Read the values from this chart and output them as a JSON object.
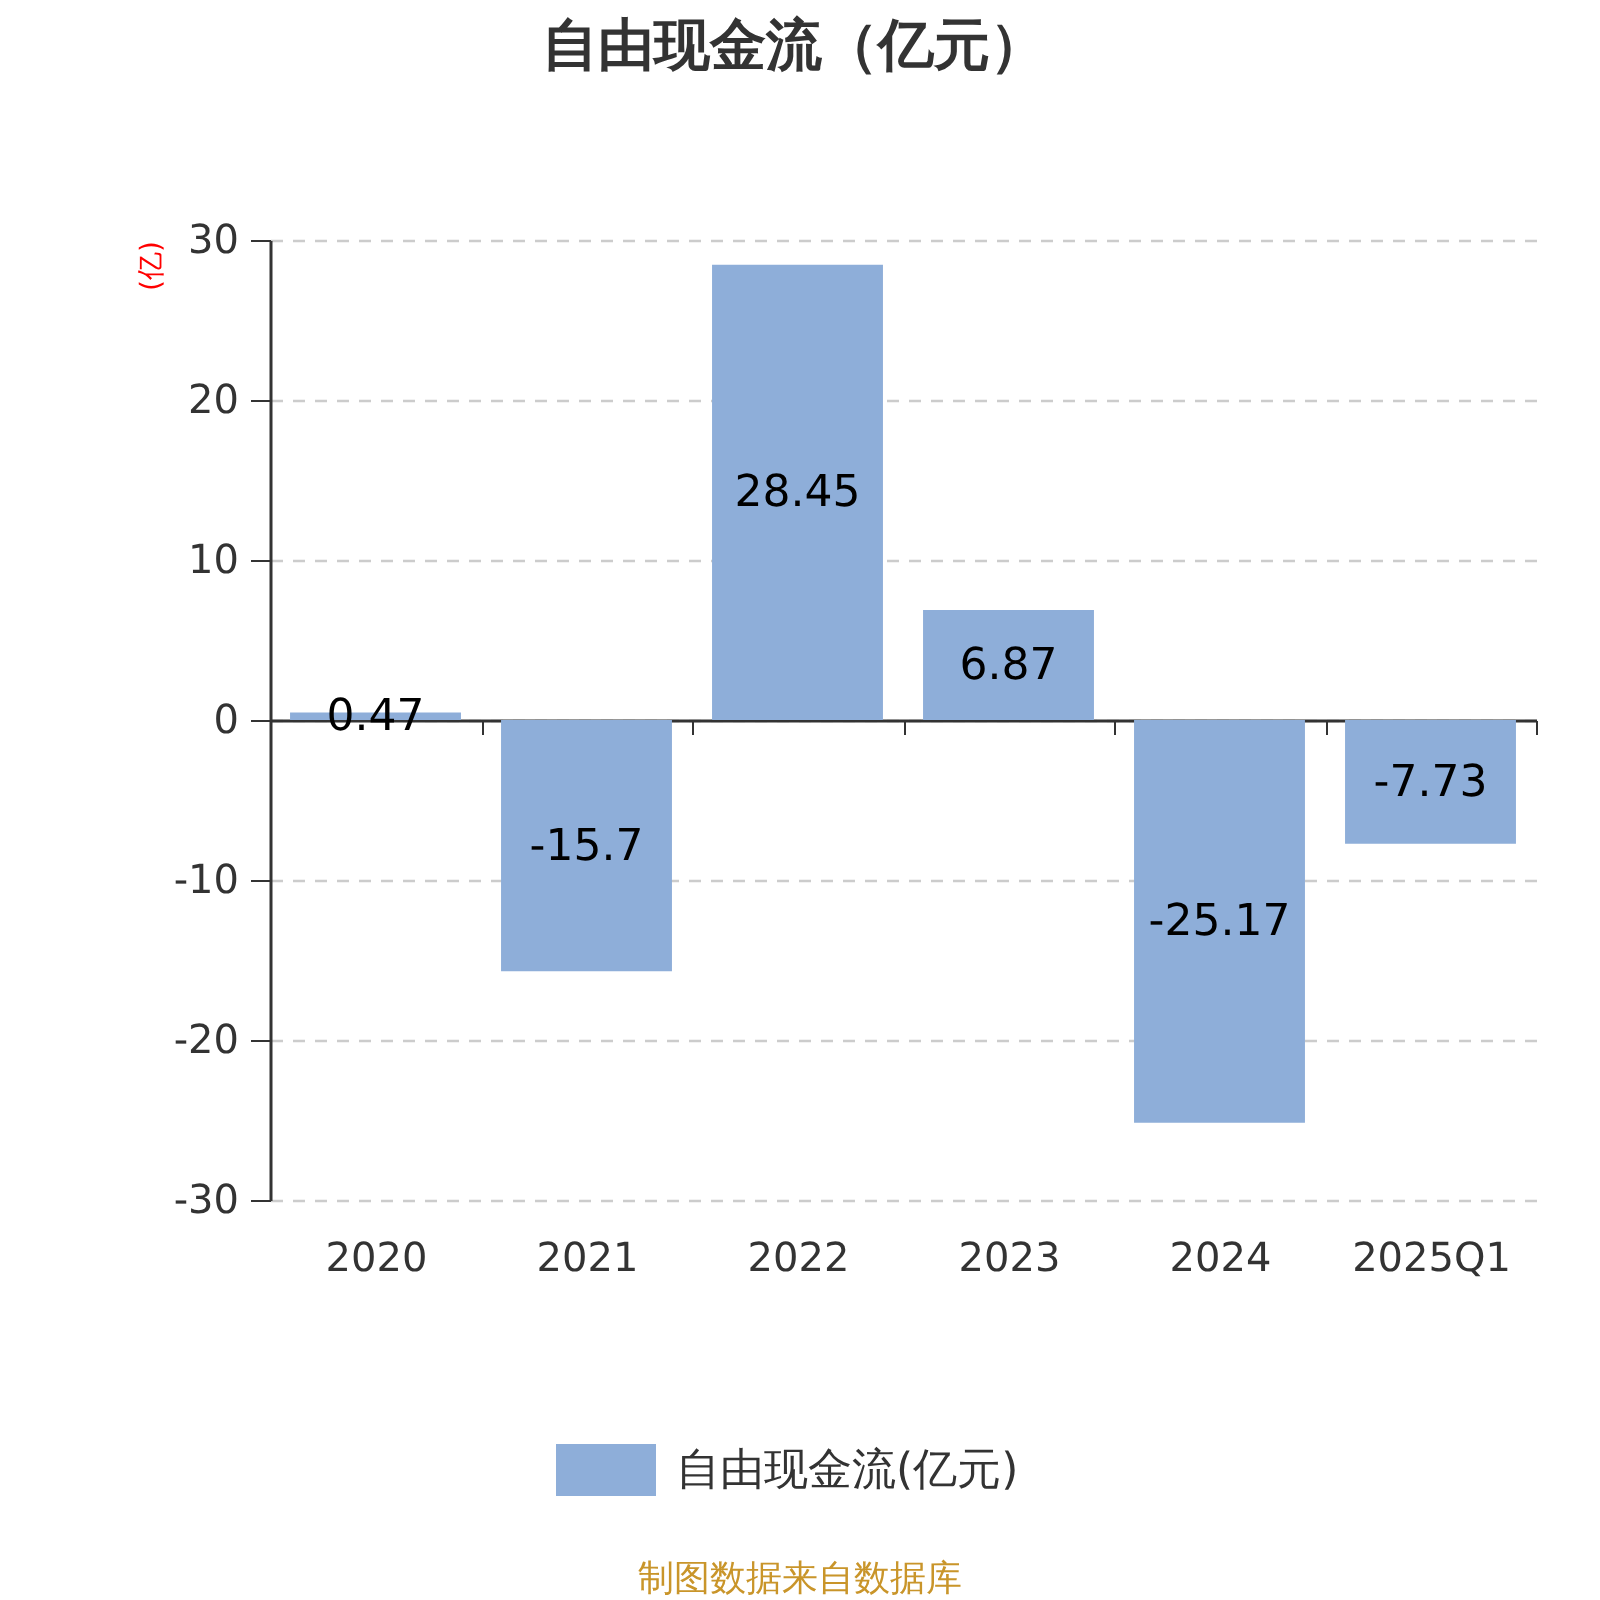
{
  "chart_data": {
    "type": "bar",
    "title": "自由现金流（亿元）",
    "ylabel": "(亿)",
    "annotations": [
      "制图数据来自数据库"
    ],
    "categories": [
      "2020",
      "2021",
      "2022",
      "2023",
      "2024",
      "2025Q1"
    ],
    "series": [
      {
        "name": "自由现金流(亿元)",
        "color": "#8eaed9",
        "values": [
          0.47,
          -15.7,
          28.45,
          6.87,
          -25.17,
          -7.73
        ]
      }
    ],
    "ylim": [
      -30,
      30
    ],
    "yticks": [
      -30,
      -20,
      -10,
      0,
      10,
      20,
      30
    ],
    "grid": "y",
    "legend": "bottom",
    "data_labels": true
  }
}
